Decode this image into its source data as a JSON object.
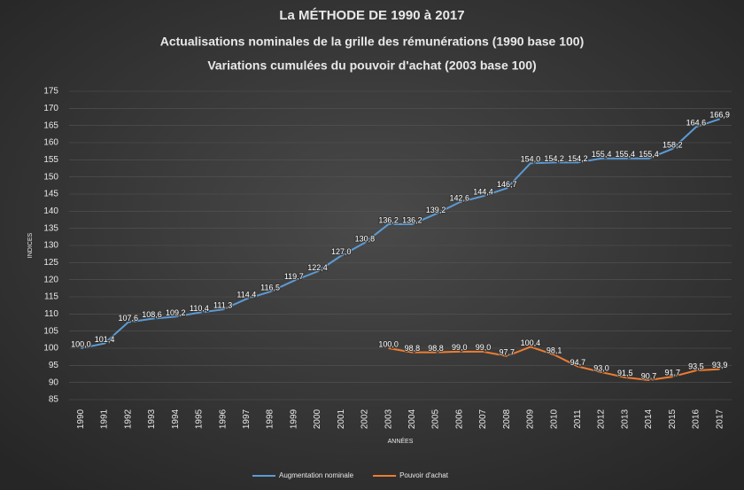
{
  "chart_data": {
    "type": "line",
    "title": "La MÉTHODE DE 1990 à 2017",
    "subtitles": [
      "Actualisations nominales  de la grille des rémunérations (1990 base 100)",
      "Variations cumulées du pouvoir d'achat (2003 base 100)"
    ],
    "y_label": "INDICES",
    "x_label": "ANNÉES",
    "categories": [
      "1990",
      "1991",
      "1992",
      "1993",
      "1994",
      "1995",
      "1996",
      "1997",
      "1998",
      "1999",
      "2000",
      "2001",
      "2002",
      "2003",
      "2004",
      "2005",
      "2006",
      "2007",
      "2008",
      "2009",
      "2010",
      "2011",
      "2012",
      "2013",
      "2014",
      "2015",
      "2016",
      "2017"
    ],
    "series": [
      {
        "name": "Augmentation nominale",
        "color": "#5b9bd5",
        "values": [
          100.0,
          101.4,
          107.6,
          108.6,
          109.2,
          110.4,
          111.3,
          114.4,
          116.5,
          119.7,
          122.4,
          127.0,
          130.8,
          136.2,
          136.2,
          139.2,
          142.6,
          144.4,
          146.7,
          154.0,
          154.2,
          154.2,
          155.4,
          155.4,
          155.4,
          158.2,
          164.6,
          166.9
        ],
        "value_labels": [
          "100,0",
          "101,4",
          "107,6",
          "108,6",
          "109,2",
          "110,4",
          "111,3",
          "114,4",
          "116,5",
          "119,7",
          "122,4",
          "127,0",
          "130,8",
          "136,2",
          "136,2",
          "139,2",
          "142,6",
          "144,4",
          "146,7",
          "154,0",
          "154,2",
          "154,2",
          "155,4",
          "155,4",
          "155,4",
          "158,2",
          "164,6",
          "166,9"
        ]
      },
      {
        "name": "Pouvoir d'achat",
        "color": "#ed7d31",
        "values": [
          null,
          null,
          null,
          null,
          null,
          null,
          null,
          null,
          null,
          null,
          null,
          null,
          null,
          100.0,
          98.8,
          98.8,
          99.0,
          99.0,
          97.7,
          100.4,
          98.1,
          94.7,
          93.0,
          91.5,
          90.7,
          91.7,
          93.5,
          93.9
        ],
        "value_labels": [
          null,
          null,
          null,
          null,
          null,
          null,
          null,
          null,
          null,
          null,
          null,
          null,
          null,
          "100,0",
          "98,8",
          "98,8",
          "99,0",
          "99,0",
          "97,7",
          "100,4",
          "98,1",
          "94,7",
          "93,0",
          "91,5",
          "90,7",
          "91,7",
          "93,5",
          "93,9"
        ]
      }
    ],
    "ylim": [
      85,
      175
    ],
    "yticks": [
      85,
      90,
      95,
      100,
      105,
      110,
      115,
      120,
      125,
      130,
      135,
      140,
      145,
      150,
      155,
      160,
      165,
      170,
      175
    ],
    "grid": true,
    "legend": "bottom"
  }
}
